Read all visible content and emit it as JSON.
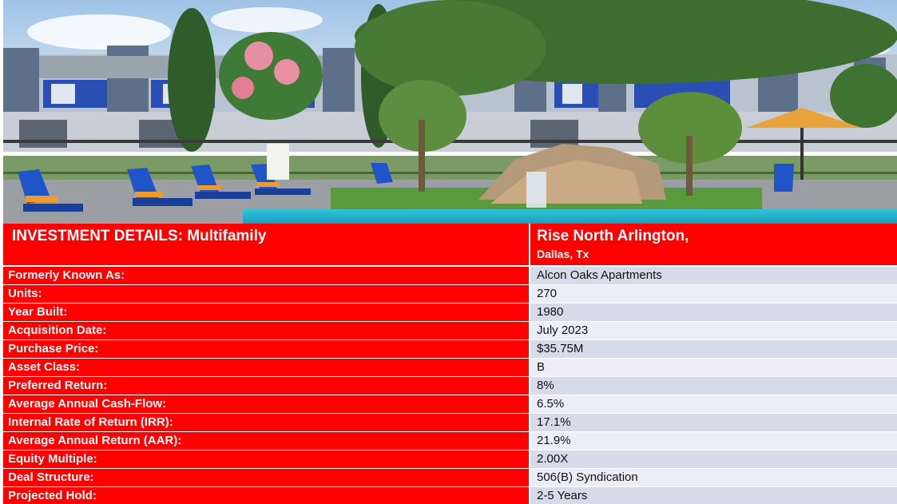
{
  "header": {
    "title": "INVESTMENT DETAILS: Multifamily",
    "property_name": "Rise North Arlington,",
    "property_location": "Dallas, Tx"
  },
  "details": [
    {
      "label": "Formerly Known As:",
      "value": "Alcon Oaks Apartments"
    },
    {
      "label": "Units:",
      "value": "270"
    },
    {
      "label": "Year Built:",
      "value": "1980"
    },
    {
      "label": "Acquisition Date:",
      "value": "July 2023"
    },
    {
      "label": "Purchase Price:",
      "value": "$35.75M"
    },
    {
      "label": "Asset Class:",
      "value": "B"
    },
    {
      "label": "Preferred Return:",
      "value": "8%"
    },
    {
      "label": "Average Annual Cash-Flow:",
      "value": "6.5%"
    },
    {
      "label": "Internal Rate of Return (IRR):",
      "value": "17.1%"
    },
    {
      "label": "Average Annual Return (AAR):",
      "value": "21.9%"
    },
    {
      "label": "Equity Multiple:",
      "value": "2.00X"
    },
    {
      "label": "Deal Structure:",
      "value": "506(B) Syndication"
    },
    {
      "label": "Projected Hold:",
      "value": "2-5 Years"
    }
  ],
  "colors": {
    "label_bg": "#ff0000",
    "value_bg_dark": "#d6dbe9",
    "value_bg_light": "#ebeef5"
  }
}
